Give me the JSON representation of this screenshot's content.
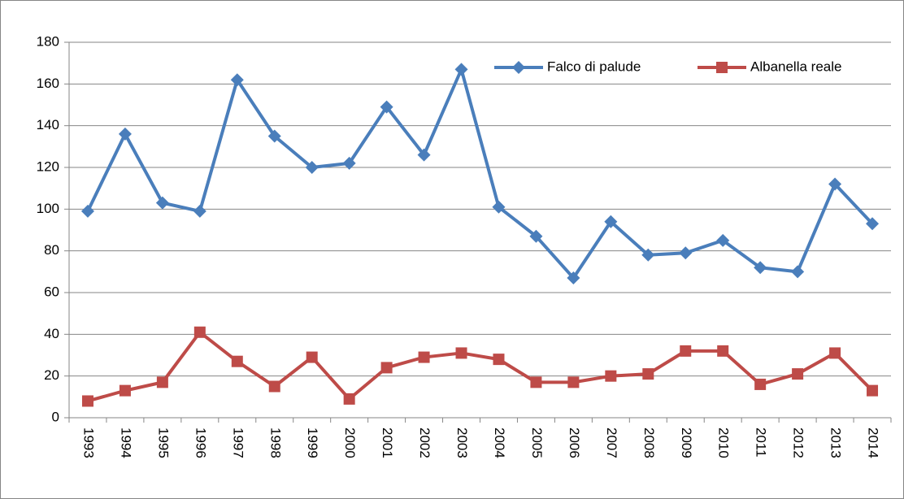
{
  "chart_data": {
    "type": "line",
    "categories": [
      "1993",
      "1994",
      "1995",
      "1996",
      "1997",
      "1998",
      "1999",
      "2000",
      "2001",
      "2002",
      "2003",
      "2004",
      "2005",
      "2006",
      "2007",
      "2008",
      "2009",
      "2010",
      "2011",
      "2012",
      "2013",
      "2014"
    ],
    "series": [
      {
        "name": "Falco di palude",
        "color": "#4a7ebb",
        "marker": "diamond",
        "values": [
          99,
          136,
          103,
          99,
          162,
          135,
          120,
          122,
          149,
          126,
          167,
          101,
          87,
          67,
          94,
          78,
          79,
          85,
          72,
          70,
          112,
          93
        ]
      },
      {
        "name": "Albanella reale",
        "color": "#be4b48",
        "marker": "square",
        "values": [
          8,
          13,
          17,
          41,
          27,
          15,
          29,
          9,
          24,
          29,
          31,
          28,
          17,
          17,
          20,
          21,
          32,
          32,
          16,
          21,
          31,
          13
        ]
      }
    ],
    "ylim": [
      0,
      180
    ],
    "yticks": [
      0,
      20,
      40,
      60,
      80,
      100,
      120,
      140,
      160,
      180
    ],
    "grid": true,
    "legend": "top-right"
  }
}
